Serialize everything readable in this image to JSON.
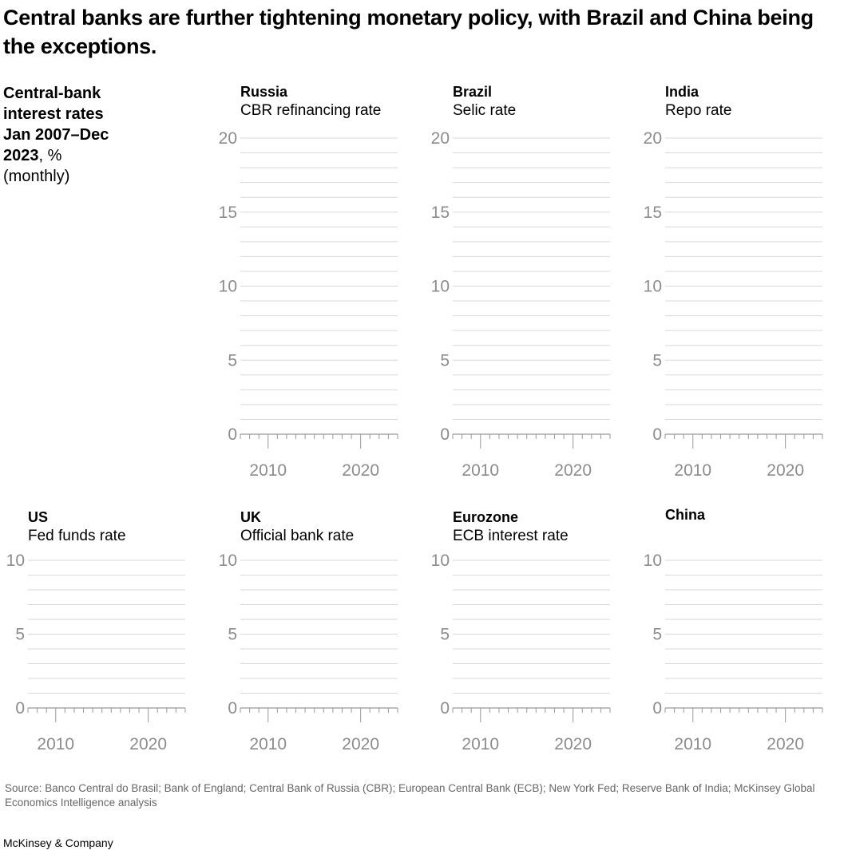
{
  "title": "Central banks are further tightening monetary policy, with Brazil and China being the exceptions.",
  "side_label": {
    "bold": "Central-bank interest rates Jan 2007–Dec 2023",
    "rest": ", %",
    "note": "(monthly)"
  },
  "colors": {
    "grid": "#d9d9d9",
    "axis": "#999999",
    "tick_label": "#8c8c8c"
  },
  "chart_data": [
    {
      "type": "line",
      "title": "Russia",
      "subtitle": "CBR refinancing rate",
      "xlim": [
        2007,
        2024
      ],
      "ylim": [
        0,
        20
      ],
      "yticks": [
        0,
        5,
        10,
        15,
        20
      ],
      "xticks": [
        2010,
        2020
      ],
      "grid": true,
      "series": []
    },
    {
      "type": "line",
      "title": "Brazil",
      "subtitle": "Selic rate",
      "xlim": [
        2007,
        2024
      ],
      "ylim": [
        0,
        20
      ],
      "yticks": [
        0,
        5,
        10,
        15,
        20
      ],
      "xticks": [
        2010,
        2020
      ],
      "grid": true,
      "series": []
    },
    {
      "type": "line",
      "title": "India",
      "subtitle": "Repo rate",
      "xlim": [
        2007,
        2024
      ],
      "ylim": [
        0,
        20
      ],
      "yticks": [
        0,
        5,
        10,
        15,
        20
      ],
      "xticks": [
        2010,
        2020
      ],
      "grid": true,
      "series": []
    },
    {
      "type": "line",
      "title": "US",
      "subtitle": "Fed funds rate",
      "xlim": [
        2007,
        2024
      ],
      "ylim": [
        0,
        10
      ],
      "yticks": [
        0,
        5,
        10
      ],
      "xticks": [
        2010,
        2020
      ],
      "grid": true,
      "series": []
    },
    {
      "type": "line",
      "title": "UK",
      "subtitle": "Official bank rate",
      "xlim": [
        2007,
        2024
      ],
      "ylim": [
        0,
        10
      ],
      "yticks": [
        0,
        5,
        10
      ],
      "xticks": [
        2010,
        2020
      ],
      "grid": true,
      "series": []
    },
    {
      "type": "line",
      "title": "Eurozone",
      "subtitle": "ECB interest rate",
      "xlim": [
        2007,
        2024
      ],
      "ylim": [
        0,
        10
      ],
      "yticks": [
        0,
        5,
        10
      ],
      "xticks": [
        2010,
        2020
      ],
      "grid": true,
      "series": []
    },
    {
      "type": "line",
      "title": "China",
      "subtitle": "",
      "xlim": [
        2007,
        2024
      ],
      "ylim": [
        0,
        10
      ],
      "yticks": [
        0,
        5,
        10
      ],
      "xticks": [
        2010,
        2020
      ],
      "grid": true,
      "series": []
    }
  ],
  "source": "Source: Banco Central do Brasil; Bank of England; Central Bank of Russia (CBR); European Central Bank (ECB); New York Fed; Reserve Bank of India; McKinsey Global Economics Intelligence analysis",
  "brand": "McKinsey & Company"
}
